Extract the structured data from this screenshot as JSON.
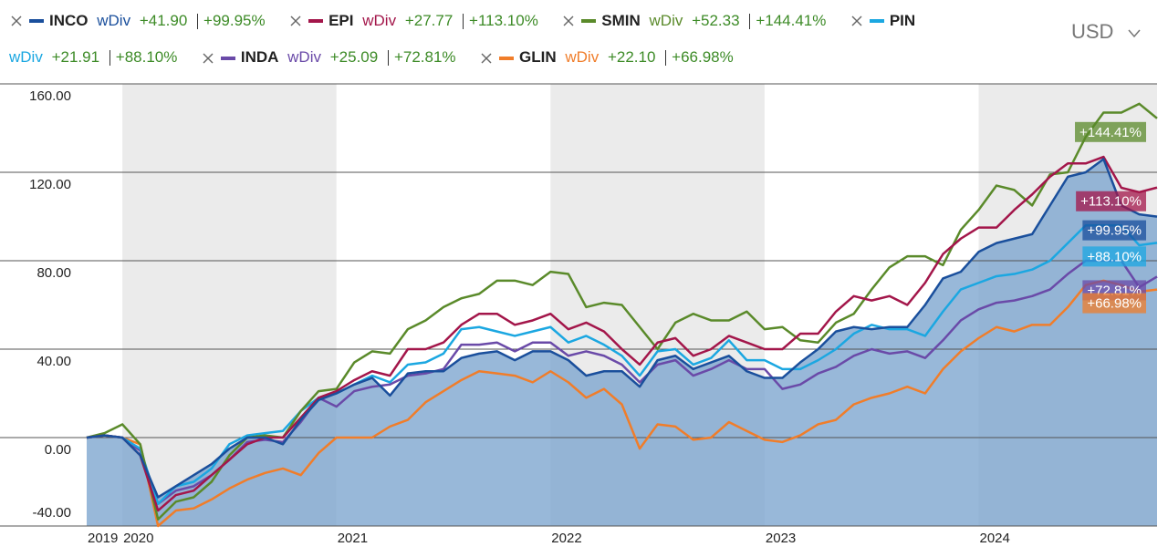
{
  "chart_data": {
    "type": "line",
    "legend_suffix": "wDiv",
    "currency": "USD",
    "categories": [
      "2019",
      null,
      "2020",
      null,
      null,
      null,
      null,
      null,
      null,
      null,
      null,
      null,
      null,
      null,
      "2021",
      null,
      null,
      null,
      null,
      null,
      null,
      null,
      null,
      null,
      null,
      null,
      "2022",
      null,
      null,
      null,
      null,
      null,
      null,
      null,
      null,
      null,
      null,
      null,
      "2023",
      null,
      null,
      null,
      null,
      null,
      null,
      null,
      null,
      null,
      null,
      null,
      "2024",
      null,
      null,
      null,
      null,
      null,
      null,
      null,
      null,
      null,
      null
    ],
    "ylim": [
      -40,
      160
    ],
    "yticks": [
      {
        "value": 160,
        "label": "160.00"
      },
      {
        "value": 120,
        "label": "120.00"
      },
      {
        "value": 80,
        "label": "80.00"
      },
      {
        "value": 40,
        "label": "40.00"
      },
      {
        "value": 0,
        "label": "0.00"
      },
      {
        "value": -40,
        "label": "-40.00"
      }
    ],
    "grid": true,
    "series": [
      {
        "name": "INCO",
        "color": "#1a4f9c",
        "fill": true,
        "change_label": "+41.90",
        "return_label": "+99.95%",
        "values": [
          0,
          1,
          0,
          -8,
          -27,
          -22,
          -17,
          -12,
          -5,
          0,
          0,
          -3,
          8,
          17,
          20,
          24,
          27,
          19,
          29,
          30,
          30,
          36,
          38,
          39,
          35,
          39,
          39,
          35,
          28,
          30,
          30,
          23,
          35,
          37,
          31,
          34,
          37,
          30,
          27,
          27,
          34,
          40,
          48,
          50,
          49,
          50,
          50,
          60,
          72,
          75,
          84,
          88,
          90,
          92,
          105,
          118,
          120,
          126,
          105,
          101,
          99.95
        ]
      },
      {
        "name": "EPI",
        "color": "#a3164a",
        "change_label": "+27.77",
        "return_label": "+113.10%",
        "values": [
          0,
          1,
          0,
          -8,
          -33,
          -26,
          -24,
          -17,
          -10,
          -3,
          0,
          0,
          9,
          18,
          21,
          26,
          30,
          28,
          40,
          40,
          43,
          51,
          56,
          56,
          51,
          53,
          56,
          49,
          52,
          48,
          40,
          33,
          43,
          45,
          37,
          40,
          46,
          43,
          40,
          40,
          47,
          47,
          57,
          64,
          62,
          64,
          60,
          70,
          83,
          90,
          95,
          95,
          103,
          110,
          118,
          124,
          124,
          127,
          113,
          111,
          113.1
        ]
      },
      {
        "name": "SMIN",
        "color": "#5a8a2a",
        "change_label": "+52.33",
        "return_label": "+144.41%",
        "values": [
          0,
          2,
          6,
          -3,
          -37,
          -29,
          -27,
          -20,
          -8,
          0,
          1,
          0,
          12,
          21,
          22,
          34,
          39,
          38,
          49,
          53,
          59,
          63,
          65,
          71,
          71,
          69,
          75,
          74,
          59,
          61,
          60,
          50,
          40,
          52,
          56,
          53,
          53,
          57,
          49,
          50,
          44,
          43,
          52,
          56,
          67,
          77,
          82,
          82,
          78,
          94,
          103,
          114,
          112,
          105,
          119,
          120,
          136,
          147,
          147,
          151,
          144.41
        ]
      },
      {
        "name": "PIN",
        "color": "#1ba7e1",
        "change_label": "+21.91",
        "return_label": "+88.10%",
        "values": [
          0,
          1,
          0,
          -5,
          -30,
          -22,
          -20,
          -14,
          -3,
          1,
          2,
          3,
          12,
          18,
          20,
          24,
          28,
          25,
          33,
          34,
          38,
          49,
          50,
          48,
          46,
          48,
          50,
          43,
          46,
          42,
          37,
          28,
          39,
          40,
          33,
          36,
          44,
          35,
          35,
          31,
          31,
          35,
          40,
          47,
          51,
          49,
          49,
          46,
          57,
          67,
          70,
          73,
          74,
          76,
          80,
          88,
          96,
          96,
          96,
          87,
          88.1
        ]
      },
      {
        "name": "INDA",
        "color": "#6a4aa8",
        "change_label": "+25.09",
        "return_label": "+72.81%",
        "values": [
          0,
          1,
          0,
          -6,
          -30,
          -24,
          -22,
          -17,
          -10,
          -2,
          -1,
          -2,
          7,
          18,
          14,
          21,
          23,
          24,
          28,
          29,
          31,
          42,
          42,
          43,
          39,
          43,
          43,
          37,
          39,
          37,
          33,
          25,
          33,
          35,
          28,
          31,
          35,
          31,
          31,
          22,
          24,
          29,
          32,
          37,
          40,
          38,
          39,
          36,
          44,
          53,
          58,
          61,
          62,
          64,
          67,
          74,
          80,
          80,
          80,
          68,
          72.81
        ]
      },
      {
        "name": "GLIN",
        "color": "#f07d2a",
        "change_label": "+22.10",
        "return_label": "+66.98%",
        "values": [
          0,
          1,
          0,
          -3,
          -40,
          -33,
          -32,
          -28,
          -23,
          -19,
          -16,
          -14,
          -17,
          -7,
          0,
          0,
          0,
          5,
          8,
          16,
          21,
          26,
          30,
          29,
          28,
          25,
          30,
          25,
          18,
          22,
          15,
          -5,
          6,
          5,
          -1,
          0,
          7,
          3,
          -1,
          -2,
          1,
          6,
          8,
          15,
          18,
          20,
          23,
          20,
          31,
          39,
          45,
          50,
          48,
          51,
          51,
          59,
          69,
          71,
          69,
          66,
          66.98
        ]
      }
    ]
  }
}
